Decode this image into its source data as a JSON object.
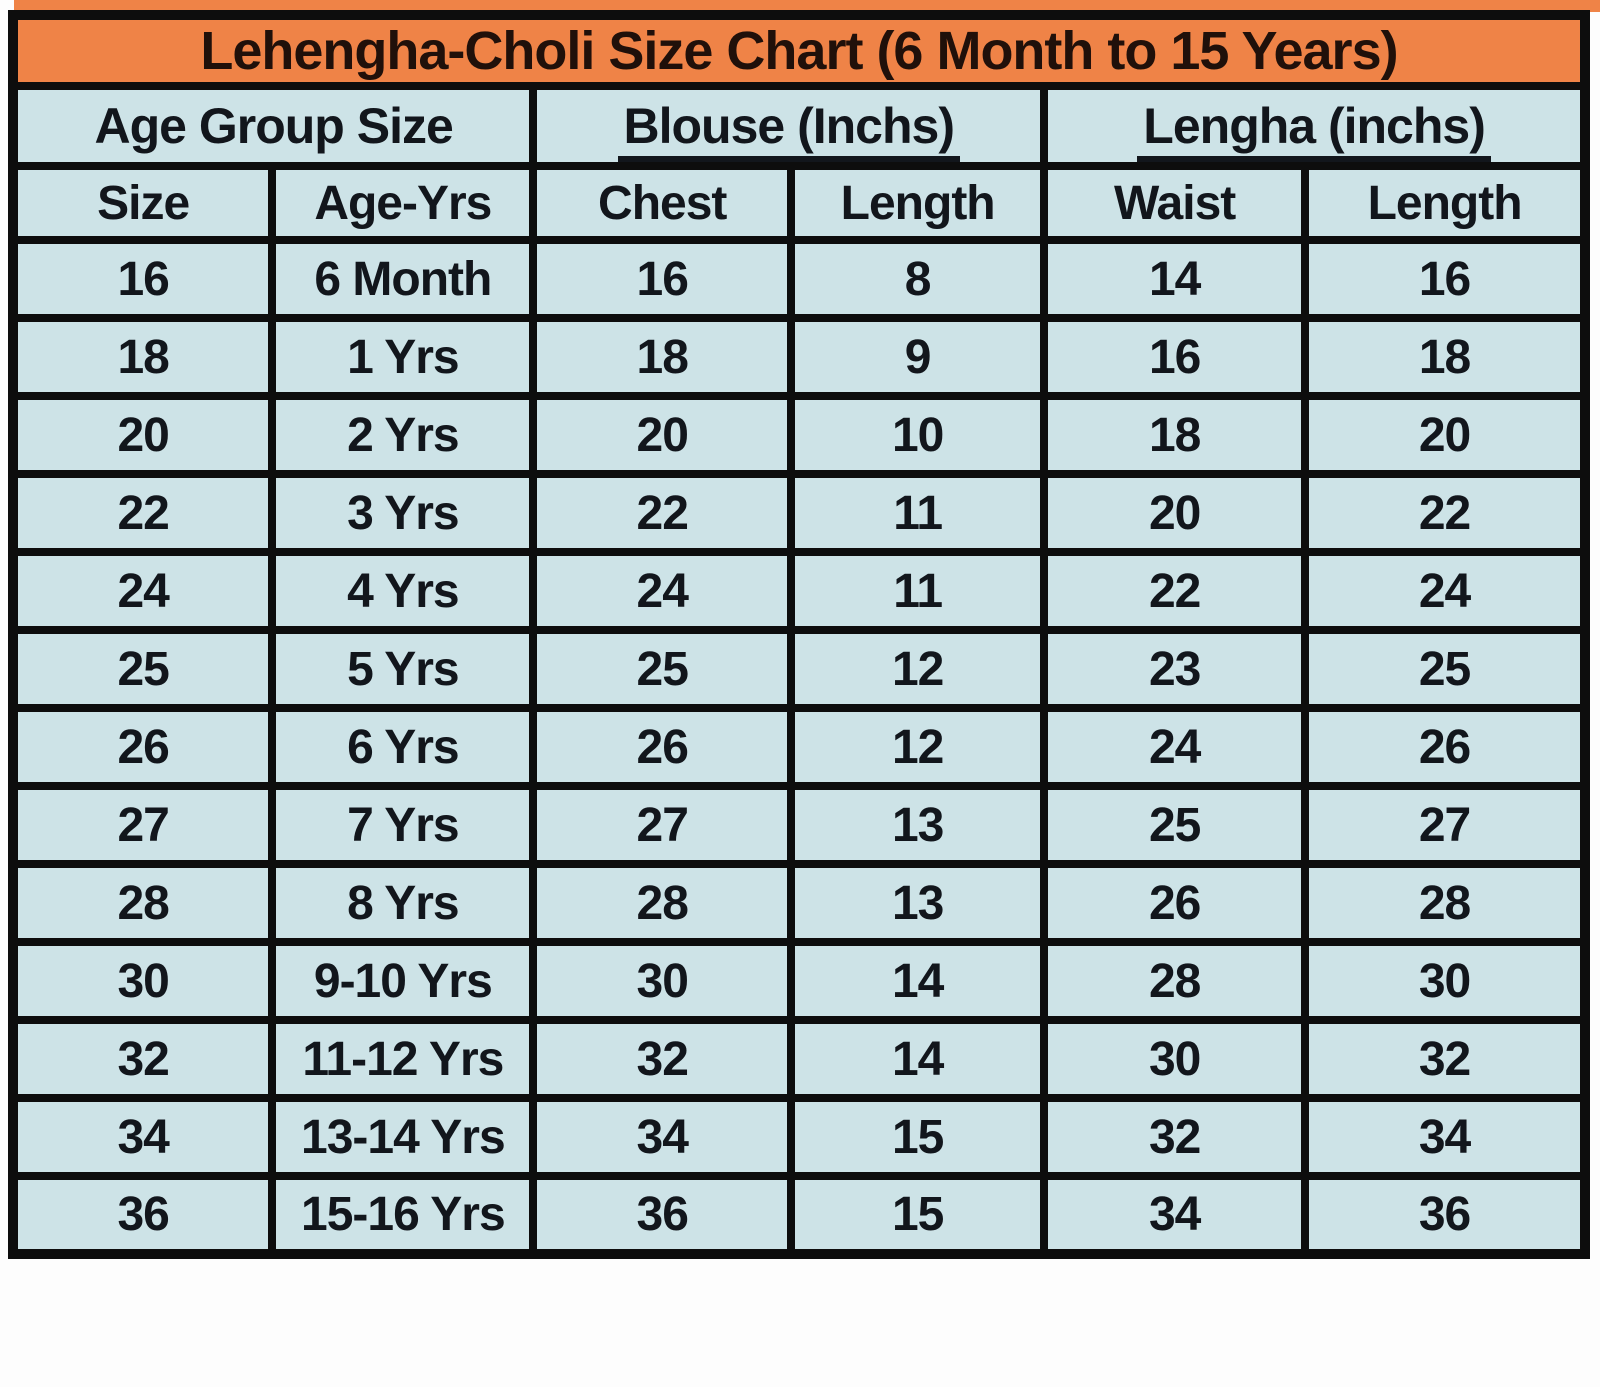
{
  "colors": {
    "header_bg": "#ef8347",
    "cell_bg": "#cde3e7",
    "border": "#0d0d0d",
    "title_text": "#20100a",
    "cell_text": "#12161c",
    "page_bg": "#fdfdfd"
  },
  "chart_data": {
    "type": "table",
    "title": "Lehengha-Choli Size Chart  (6 Month to 15 Years)",
    "column_groups": [
      {
        "label": "Age Group Size",
        "span": 2,
        "underline": false
      },
      {
        "label": "Blouse (Inchs)",
        "span": 2,
        "underline": true
      },
      {
        "label": "Lengha (inchs)",
        "span": 2,
        "underline": true
      }
    ],
    "columns": [
      "Size",
      "Age-Yrs",
      "Chest",
      "Length",
      "Waist",
      "Length"
    ],
    "rows": [
      [
        "16",
        "6 Month",
        "16",
        "8",
        "14",
        "16"
      ],
      [
        "18",
        "1 Yrs",
        "18",
        "9",
        "16",
        "18"
      ],
      [
        "20",
        "2 Yrs",
        "20",
        "10",
        "18",
        "20"
      ],
      [
        "22",
        "3 Yrs",
        "22",
        "11",
        "20",
        "22"
      ],
      [
        "24",
        "4 Yrs",
        "24",
        "11",
        "22",
        "24"
      ],
      [
        "25",
        "5 Yrs",
        "25",
        "12",
        "23",
        "25"
      ],
      [
        "26",
        "6 Yrs",
        "26",
        "12",
        "24",
        "26"
      ],
      [
        "27",
        "7 Yrs",
        "27",
        "13",
        "25",
        "27"
      ],
      [
        "28",
        "8 Yrs",
        "28",
        "13",
        "26",
        "28"
      ],
      [
        "30",
        "9-10 Yrs",
        "30",
        "14",
        "28",
        "30"
      ],
      [
        "32",
        "11-12 Yrs",
        "32",
        "14",
        "30",
        "32"
      ],
      [
        "34",
        "13-14 Yrs",
        "34",
        "15",
        "32",
        "34"
      ],
      [
        "36",
        "15-16 Yrs",
        "36",
        "15",
        "34",
        "36"
      ]
    ],
    "layout": {
      "grid": "on",
      "header_row_count": 3
    }
  }
}
